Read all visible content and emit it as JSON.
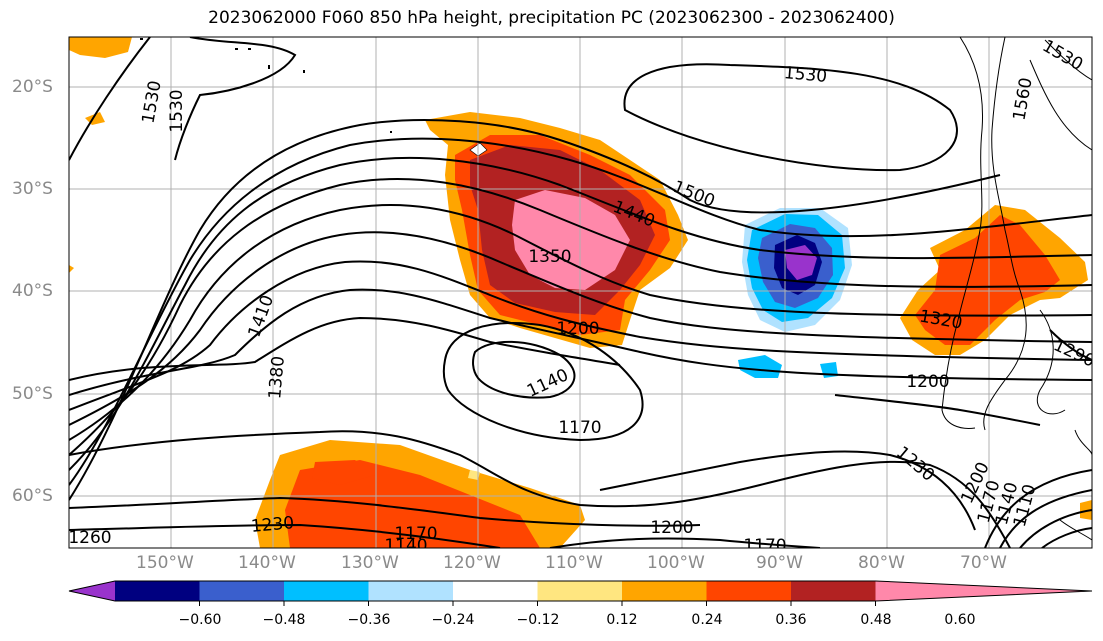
{
  "title": "2023062000 F060 850 hPa height, precipitation PC (2023062300 - 2023062400)",
  "map": {
    "region": "South-east Pacific and southern South America",
    "lat_labels": [
      "20°S",
      "30°S",
      "40°S",
      "50°S",
      "60°S"
    ],
    "lon_labels": [
      "150°W",
      "140°W",
      "130°W",
      "120°W",
      "110°W",
      "100°W",
      "90°W",
      "80°W",
      "70°W"
    ],
    "contour_labels": [
      "1530",
      "1530",
      "1530",
      "1530",
      "1560",
      "1500",
      "1440",
      "1350",
      "1200",
      "1410",
      "1380",
      "1140",
      "1170",
      "1200",
      "1230",
      "1290",
      "1200",
      "1170",
      "1140",
      "1110",
      "1260",
      "1230",
      "1170",
      "1140",
      "1200",
      "1170",
      "1320"
    ]
  },
  "colorbar": {
    "colors": [
      "#9933cc",
      "#000080",
      "#3a5fcd",
      "#00bfff",
      "#b0e2ff",
      "#ffffff",
      "#ffe680",
      "#ffa500",
      "#ff4500",
      "#b22222",
      "#ff88aa"
    ],
    "tick_labels": [
      "−0.60",
      "−0.48",
      "−0.36",
      "−0.24",
      "−0.12",
      "0.12",
      "0.24",
      "0.36",
      "0.48",
      "0.60"
    ]
  }
}
